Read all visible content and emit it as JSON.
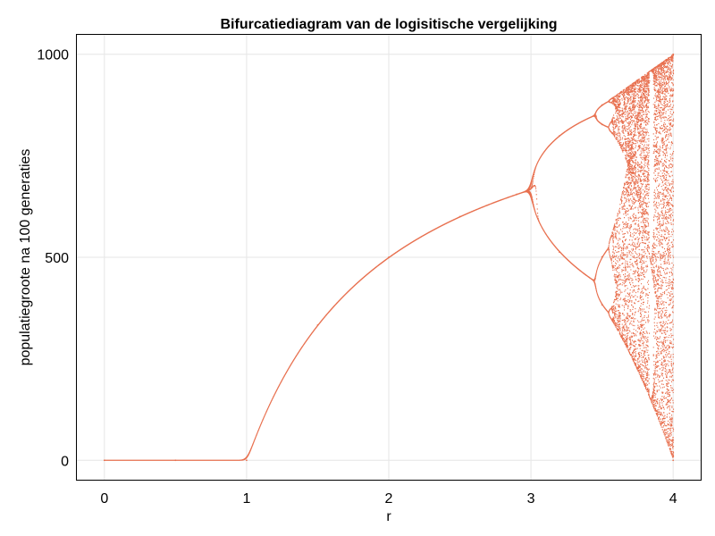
{
  "chart_data": {
    "type": "scatter",
    "title": "Bifurcatiediagram van de logisitische vergelijking",
    "xlabel": "r",
    "ylabel": "populatiegroote na 100 generaties",
    "xlim": [
      -0.2,
      4.2
    ],
    "ylim": [
      -50,
      1050
    ],
    "xticks": [
      0,
      1,
      2,
      3,
      4
    ],
    "xtick_labels": [
      "0",
      "1",
      "2",
      "3",
      "4"
    ],
    "yticks": [
      0,
      500,
      1000
    ],
    "ytick_labels": [
      "0",
      "500",
      "1000"
    ],
    "grid": true,
    "legend": "none",
    "series": [
      {
        "color": "#e8704f",
        "model": "logistic map x(n+1) = r·x(n)·(1−x(n)), population scaled to 0–1000, 100 generations",
        "r_range": [
          0,
          4
        ],
        "points": [
          [
            0,
            0
          ],
          [
            0.5,
            0
          ],
          [
            1,
            0
          ],
          [
            1.5,
            333
          ],
          [
            2,
            500
          ],
          [
            2.5,
            600
          ],
          [
            2.9,
            655
          ],
          [
            3.2,
            513
          ],
          [
            3.2,
            799
          ],
          [
            3.5,
            383
          ],
          [
            3.5,
            827
          ],
          [
            3.5,
            501
          ],
          [
            3.5,
            875
          ],
          [
            4,
            0
          ],
          [
            4,
            1000
          ]
        ]
      }
    ]
  }
}
